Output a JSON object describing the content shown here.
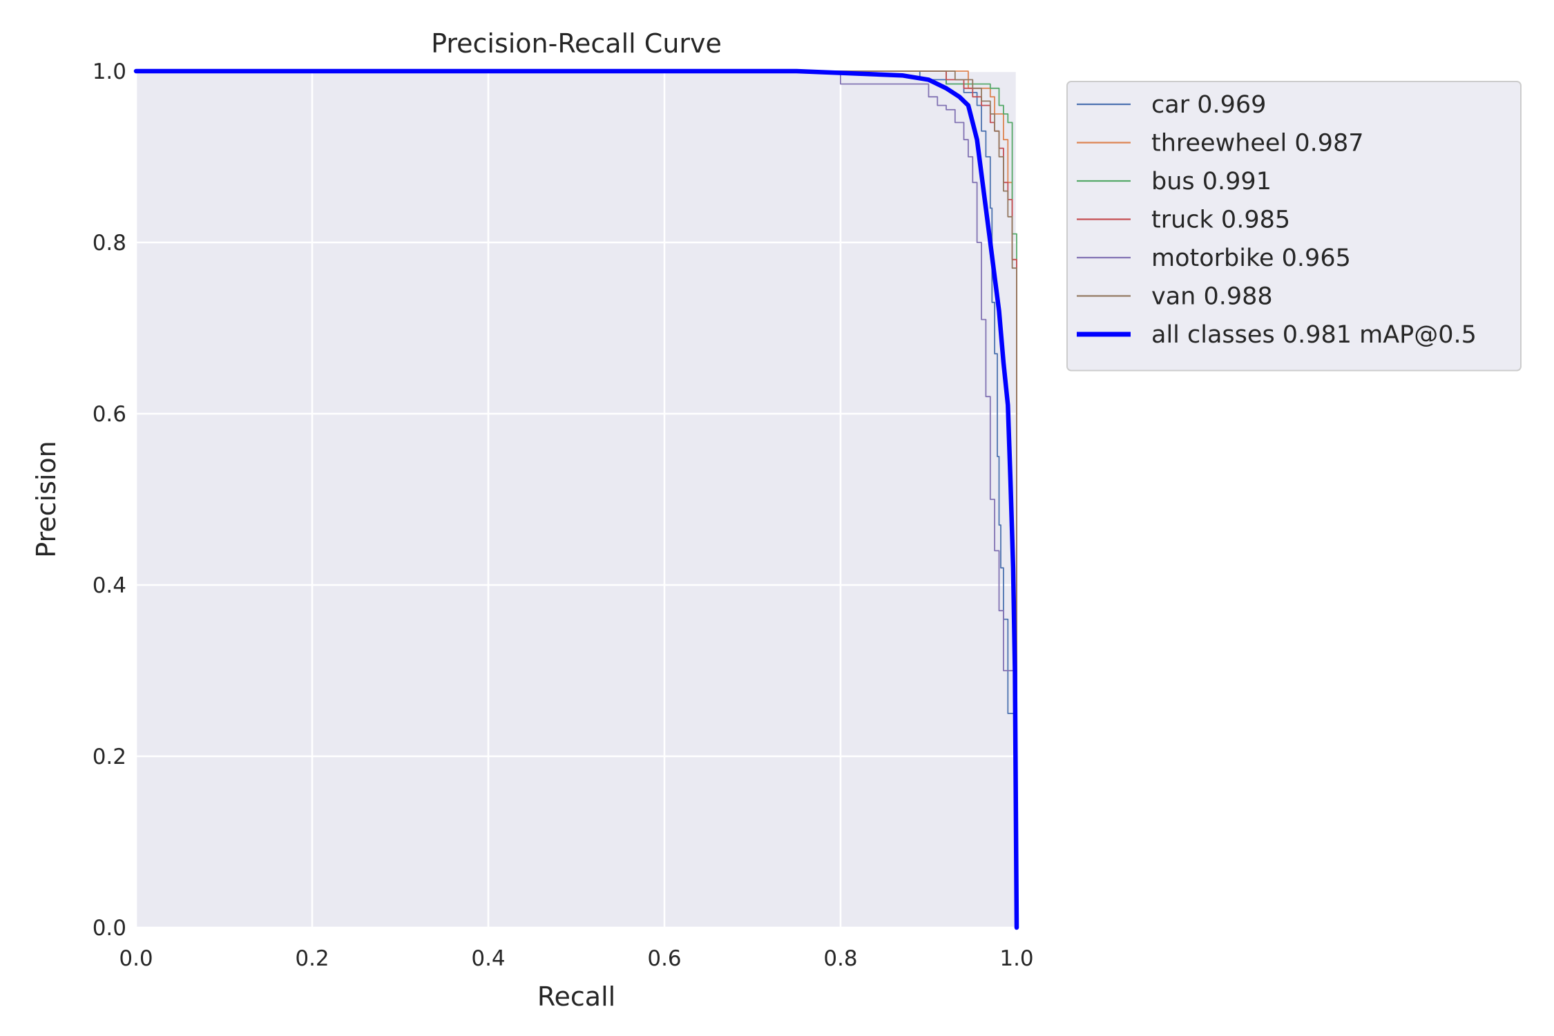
{
  "chart_data": {
    "type": "line",
    "title": "Precision-Recall Curve",
    "xlabel": "Recall",
    "ylabel": "Precision",
    "xlim": [
      0,
      1
    ],
    "ylim": [
      0,
      1
    ],
    "xticks": [
      "0.0",
      "0.2",
      "0.4",
      "0.6",
      "0.8",
      "1.0"
    ],
    "yticks": [
      "0.0",
      "0.2",
      "0.4",
      "0.6",
      "0.8",
      "1.0"
    ],
    "grid": true,
    "legend_position": "outside-top-right",
    "series": [
      {
        "name": "car 0.969",
        "color": "#4c72b0",
        "width": 1.8,
        "x": [
          0,
          0.86,
          0.89,
          0.92,
          0.94,
          0.955,
          0.96,
          0.965,
          0.97,
          0.972,
          0.975,
          0.978,
          0.98,
          0.982,
          0.985,
          0.99,
          1.0
        ],
        "y": [
          1.0,
          1.0,
          0.99,
          0.985,
          0.975,
          0.96,
          0.93,
          0.9,
          0.84,
          0.73,
          0.67,
          0.55,
          0.47,
          0.42,
          0.36,
          0.25,
          0.0
        ]
      },
      {
        "name": "threewheel 0.987",
        "color": "#dd8452",
        "width": 1.8,
        "x": [
          0,
          0.9,
          0.945,
          0.945,
          0.95,
          0.97,
          0.975,
          0.985,
          0.99,
          0.995,
          1.0,
          1.0
        ],
        "y": [
          1.0,
          1.0,
          1.0,
          0.98,
          0.98,
          0.97,
          0.95,
          0.92,
          0.87,
          0.78,
          0.6,
          0.0
        ]
      },
      {
        "name": "bus 0.991",
        "color": "#55a868",
        "width": 1.8,
        "x": [
          0,
          0.9,
          0.915,
          0.92,
          0.965,
          0.97,
          0.98,
          0.985,
          0.99,
          0.995,
          0.995,
          1.0,
          1.0
        ],
        "y": [
          1.0,
          1.0,
          1.0,
          0.985,
          0.985,
          0.98,
          0.96,
          0.95,
          0.94,
          0.935,
          0.81,
          0.75,
          0.0
        ]
      },
      {
        "name": "truck 0.985",
        "color": "#c44e52",
        "width": 1.8,
        "x": [
          0,
          0.89,
          0.92,
          0.94,
          0.95,
          0.96,
          0.97,
          0.975,
          0.98,
          0.985,
          0.99,
          0.995,
          1.0,
          1.0
        ],
        "y": [
          1.0,
          1.0,
          0.99,
          0.98,
          0.97,
          0.96,
          0.94,
          0.93,
          0.91,
          0.87,
          0.85,
          0.78,
          0.68,
          0.0
        ]
      },
      {
        "name": "motorbike 0.965",
        "color": "#8172b3",
        "width": 1.8,
        "x": [
          0,
          0.75,
          0.8,
          0.8,
          0.87,
          0.9,
          0.91,
          0.92,
          0.93,
          0.935,
          0.94,
          0.945,
          0.95,
          0.955,
          0.96,
          0.965,
          0.97,
          0.975,
          0.98,
          0.985,
          1.0
        ],
        "y": [
          1.0,
          1.0,
          0.995,
          0.985,
          0.985,
          0.97,
          0.96,
          0.955,
          0.94,
          0.94,
          0.92,
          0.9,
          0.87,
          0.8,
          0.71,
          0.62,
          0.5,
          0.44,
          0.37,
          0.3,
          0.0
        ]
      },
      {
        "name": "van 0.988",
        "color": "#937860",
        "width": 1.8,
        "x": [
          0,
          0.9,
          0.93,
          0.95,
          0.96,
          0.97,
          0.975,
          0.98,
          0.985,
          0.99,
          0.995,
          1.0,
          1.0
        ],
        "y": [
          1.0,
          1.0,
          0.99,
          0.98,
          0.965,
          0.95,
          0.93,
          0.9,
          0.86,
          0.83,
          0.77,
          0.66,
          0.0
        ]
      },
      {
        "name": "all classes 0.981 mAP@0.5",
        "color": "#0000ff",
        "width": 6.5,
        "x": [
          0,
          0.75,
          0.87,
          0.9,
          0.92,
          0.935,
          0.945,
          0.95,
          0.955,
          0.96,
          0.965,
          0.97,
          0.975,
          0.98,
          0.985,
          0.99,
          0.993,
          0.996,
          0.998,
          1.0
        ],
        "y": [
          1.0,
          1.0,
          0.995,
          0.99,
          0.98,
          0.97,
          0.96,
          0.94,
          0.92,
          0.88,
          0.84,
          0.8,
          0.76,
          0.72,
          0.66,
          0.61,
          0.52,
          0.42,
          0.3,
          0.0
        ]
      }
    ]
  }
}
